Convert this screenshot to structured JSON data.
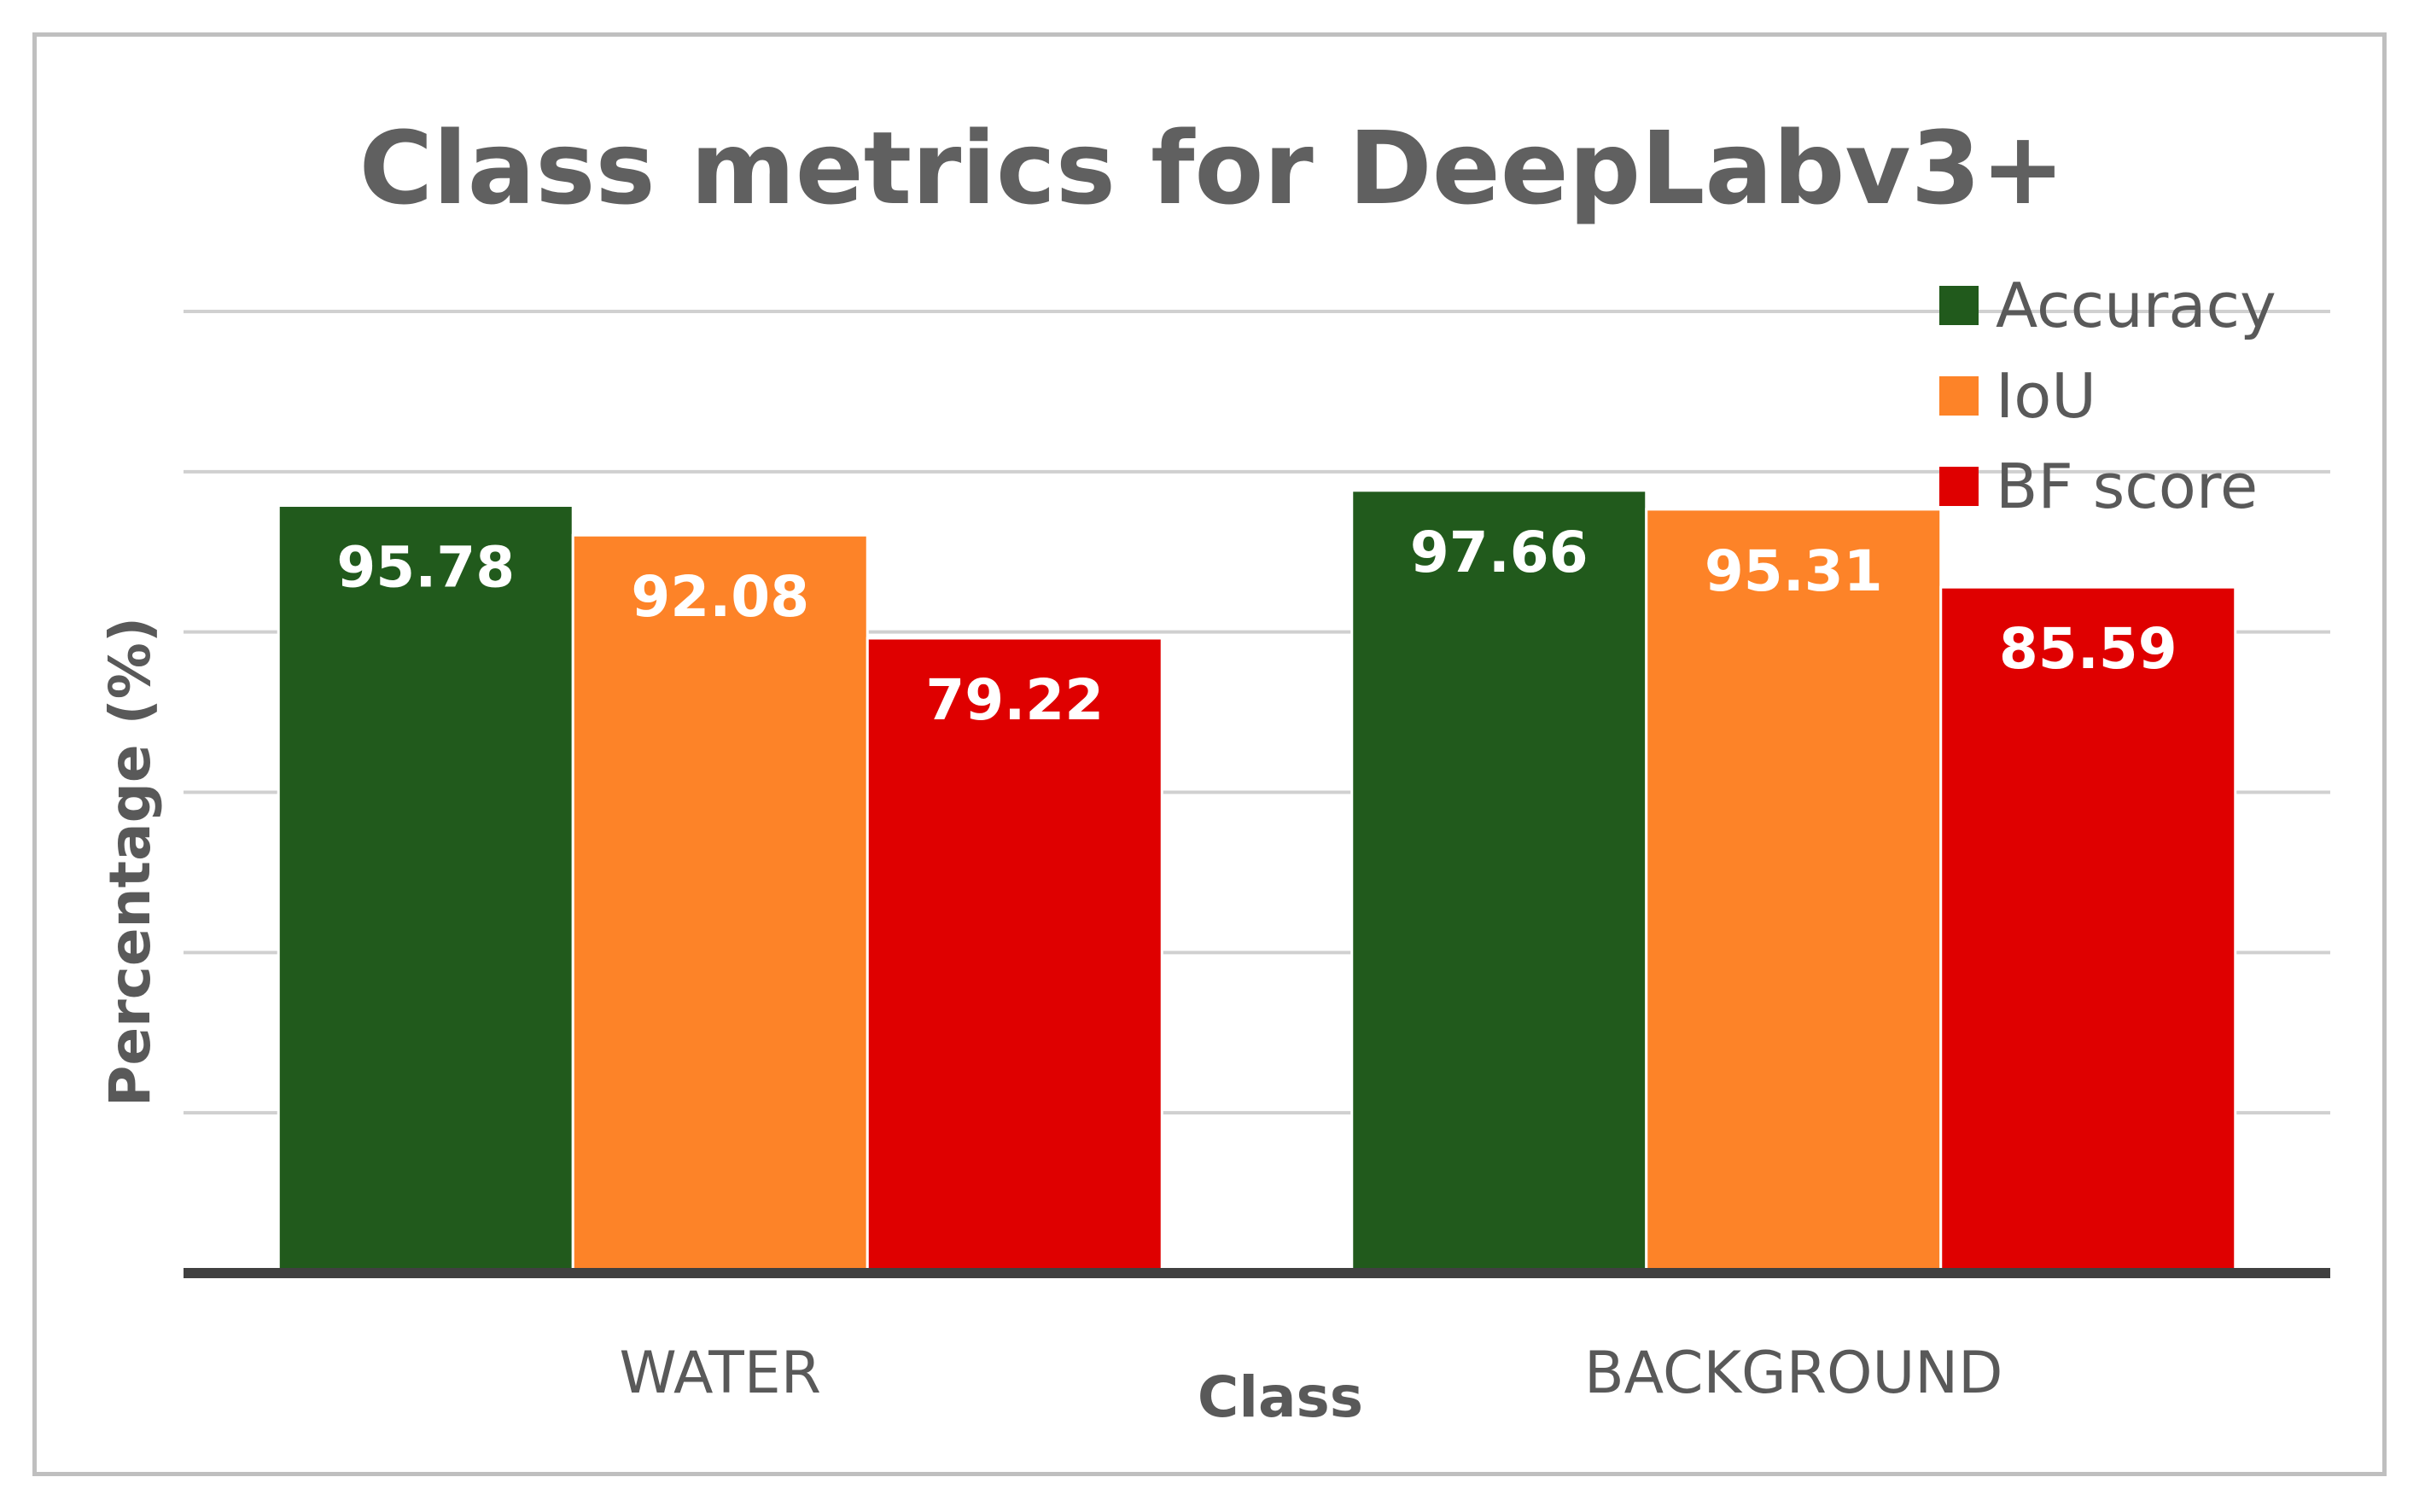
{
  "chart_data": {
    "type": "bar",
    "title": "Class metrics for DeepLabv3+",
    "xlabel": "Class",
    "ylabel": "Percentage (%)",
    "categories": [
      "WATER",
      "BACKGROUND"
    ],
    "series": [
      {
        "name": "Accuracy",
        "color": "#215a1c",
        "values": [
          95.78,
          97.66
        ]
      },
      {
        "name": "IoU",
        "color": "#fd8328",
        "values": [
          92.08,
          95.31
        ]
      },
      {
        "name": "BF score",
        "color": "#df0000",
        "values": [
          79.22,
          85.59
        ]
      }
    ],
    "ylim": [
      0,
      120
    ],
    "y_gridline_step": 20,
    "grid": true,
    "legend_position": "top-right",
    "data_labels": true
  }
}
